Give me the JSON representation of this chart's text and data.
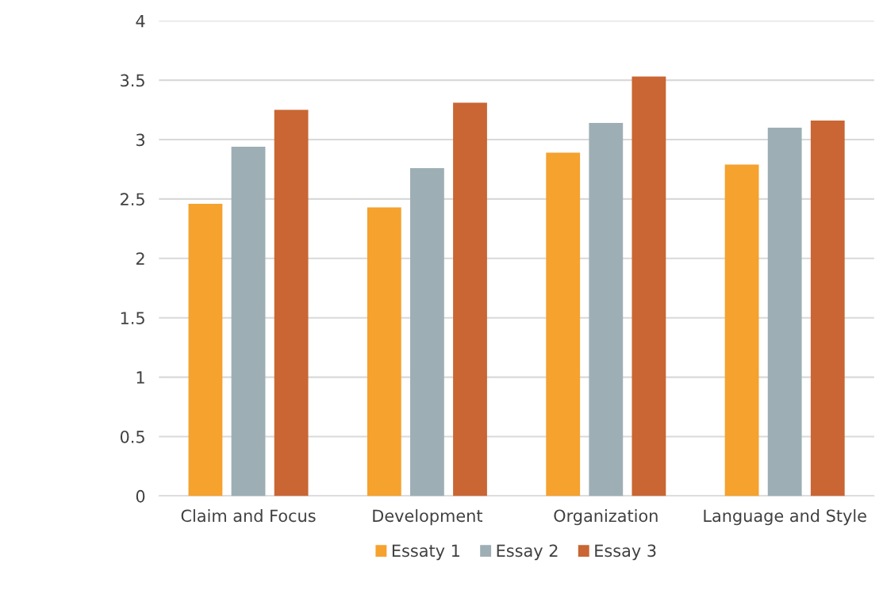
{
  "chart_data": {
    "type": "bar",
    "categories": [
      "Claim and Focus",
      "Development",
      "Organization",
      "Language and Style"
    ],
    "series": [
      {
        "name": "Essaty 1",
        "color": "#f5a22e",
        "values": [
          2.46,
          2.43,
          2.89,
          2.79
        ]
      },
      {
        "name": "Essay 2",
        "color": "#9dafb5",
        "values": [
          2.94,
          2.76,
          3.14,
          3.1
        ]
      },
      {
        "name": "Essay 3",
        "color": "#c96633",
        "values": [
          3.25,
          3.31,
          3.53,
          3.16
        ]
      }
    ],
    "ylim": [
      0,
      4
    ],
    "yticks": [
      0,
      0.5,
      1,
      1.5,
      2,
      2.5,
      3,
      3.5,
      4
    ],
    "grid": "y",
    "legend": "bottom"
  }
}
